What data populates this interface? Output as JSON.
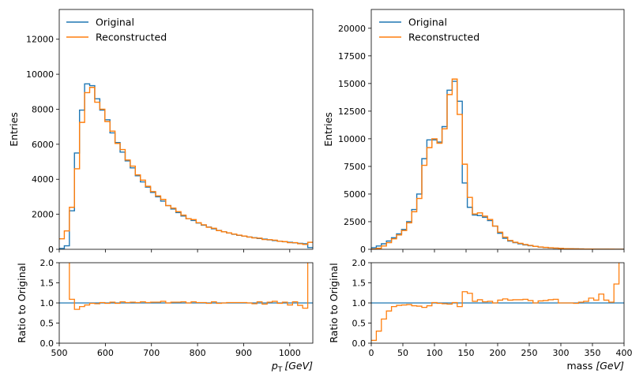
{
  "colors": {
    "original": "#1f77b4",
    "reconstructed": "#ff7f0e",
    "ratio_ref": "#1f77b4"
  },
  "chart_data": [
    {
      "name": "pt",
      "type": "histogram",
      "ylabel": "Entries",
      "ylabel_ratio": "Ratio to Original",
      "xlabel_sym": "p",
      "xlabel_sub": "T",
      "xlabel_unit": "[GeV]",
      "legend": {
        "position": "top-left",
        "entries": [
          "Original",
          "Reconstructed"
        ]
      },
      "xlim": [
        500,
        1050
      ],
      "ylim": [
        0,
        13700
      ],
      "ratio_ylim": [
        0,
        2.0
      ],
      "xticks": [
        500,
        600,
        700,
        800,
        900,
        1000
      ],
      "xtick_labels": [
        "500",
        "600",
        "700",
        "800",
        "900",
        "1000"
      ],
      "yticks": [
        0,
        2000,
        4000,
        6000,
        8000,
        10000,
        12000
      ],
      "ytick_labels": [
        "0",
        "2000",
        "4000",
        "6000",
        "8000",
        "10000",
        "12000"
      ],
      "ratio_yticks": [
        0,
        0.5,
        1.0,
        1.5,
        2.0
      ],
      "ratio_ytick_labels": [
        "0.0",
        "0.5",
        "1.0",
        "1.5",
        "2.0"
      ],
      "bin_edges": [
        500,
        511,
        522,
        533,
        544,
        555,
        566,
        577,
        588,
        599,
        610,
        621,
        632,
        643,
        654,
        665,
        676,
        687,
        698,
        709,
        720,
        731,
        742,
        753,
        764,
        775,
        786,
        797,
        808,
        819,
        830,
        841,
        852,
        863,
        874,
        885,
        896,
        907,
        918,
        929,
        940,
        951,
        962,
        973,
        984,
        995,
        1006,
        1017,
        1028,
        1039,
        1050
      ],
      "original": [
        50,
        200,
        2200,
        5500,
        7950,
        9450,
        9350,
        8600,
        7950,
        7400,
        6650,
        6100,
        5550,
        5050,
        4650,
        4200,
        3850,
        3550,
        3250,
        3000,
        2750,
        2500,
        2300,
        2100,
        1900,
        1750,
        1650,
        1500,
        1380,
        1270,
        1170,
        1080,
        1000,
        930,
        860,
        800,
        750,
        700,
        660,
        620,
        580,
        540,
        500,
        465,
        430,
        400,
        370,
        340,
        320,
        100
      ],
      "reconstructed": [
        600,
        1050,
        2400,
        4600,
        7250,
        8950,
        9250,
        8400,
        8000,
        7300,
        6750,
        6050,
        5700,
        5100,
        4750,
        4250,
        3950,
        3600,
        3300,
        3050,
        2850,
        2500,
        2350,
        2150,
        1950,
        1750,
        1700,
        1520,
        1400,
        1260,
        1200,
        1070,
        1000,
        940,
        870,
        810,
        760,
        700,
        650,
        640,
        560,
        550,
        520,
        460,
        440,
        380,
        380,
        320,
        280,
        400
      ],
      "ratio": [
        2.8,
        2.8,
        1.09,
        0.84,
        0.91,
        0.95,
        0.99,
        0.98,
        1.01,
        0.99,
        1.02,
        0.99,
        1.03,
        1.01,
        1.02,
        1.01,
        1.03,
        1.01,
        1.02,
        1.02,
        1.04,
        1.0,
        1.02,
        1.02,
        1.03,
        1.0,
        1.03,
        1.01,
        1.01,
        0.99,
        1.03,
        0.99,
        1.0,
        1.01,
        1.01,
        1.01,
        1.01,
        1.0,
        0.98,
        1.03,
        0.97,
        1.02,
        1.04,
        0.99,
        1.02,
        0.95,
        1.03,
        0.94,
        0.87,
        2.8
      ]
    },
    {
      "name": "mass",
      "type": "histogram",
      "ylabel": "Entries",
      "ylabel_ratio": "Ratio to Original",
      "xlabel_sym": "mass ",
      "xlabel_sub": "",
      "xlabel_unit": "[GeV]",
      "legend": {
        "position": "top-left",
        "entries": [
          "Original",
          "Reconstructed"
        ]
      },
      "xlim": [
        0,
        400
      ],
      "ylim": [
        0,
        21700
      ],
      "ratio_ylim": [
        0,
        2.0
      ],
      "xticks": [
        0,
        50,
        100,
        150,
        200,
        250,
        300,
        350,
        400
      ],
      "xtick_labels": [
        "0",
        "50",
        "100",
        "150",
        "200",
        "250",
        "300",
        "350",
        "400"
      ],
      "yticks": [
        0,
        2500,
        5000,
        7500,
        10000,
        12500,
        15000,
        17500,
        20000
      ],
      "ytick_labels": [
        "0",
        "2500",
        "5000",
        "7500",
        "10000",
        "12500",
        "15000",
        "17500",
        "20000"
      ],
      "ratio_yticks": [
        0,
        0.5,
        1.0,
        1.5,
        2.0
      ],
      "ratio_ytick_labels": [
        "0.0",
        "0.5",
        "1.0",
        "1.5",
        "2.0"
      ],
      "bin_edges": [
        0,
        8,
        16,
        24,
        32,
        40,
        48,
        56,
        64,
        72,
        80,
        88,
        96,
        104,
        112,
        120,
        128,
        136,
        144,
        152,
        160,
        168,
        176,
        184,
        192,
        200,
        208,
        216,
        224,
        232,
        240,
        248,
        256,
        264,
        272,
        280,
        288,
        296,
        304,
        312,
        320,
        328,
        336,
        344,
        352,
        360,
        368,
        376,
        384,
        392,
        400
      ],
      "original": [
        150,
        300,
        500,
        750,
        1050,
        1400,
        1800,
        2500,
        3600,
        5000,
        8200,
        9900,
        9900,
        9700,
        11100,
        14400,
        15200,
        13400,
        6000,
        3800,
        3100,
        3050,
        2900,
        2600,
        2100,
        1450,
        1000,
        750,
        600,
        500,
        400,
        330,
        260,
        200,
        160,
        130,
        100,
        80,
        60,
        50,
        40,
        30,
        25,
        20,
        15,
        12,
        10,
        8,
        6,
        5
      ],
      "reconstructed": [
        20,
        90,
        300,
        600,
        950,
        1300,
        1700,
        2400,
        3400,
        4600,
        7600,
        9200,
        10000,
        9600,
        10900,
        14000,
        15400,
        12200,
        7700,
        4700,
        3200,
        3300,
        3000,
        2700,
        2100,
        1550,
        1100,
        800,
        640,
        540,
        430,
        350,
        260,
        210,
        170,
        140,
        110,
        80,
        60,
        50,
        40,
        31,
        26,
        20,
        16,
        13,
        11,
        9,
        7,
        6
      ],
      "ratio": [
        0.07,
        0.3,
        0.6,
        0.8,
        0.91,
        0.94,
        0.95,
        0.96,
        0.93,
        0.92,
        0.89,
        0.93,
        1.01,
        0.99,
        0.98,
        0.97,
        1.01,
        0.91,
        1.28,
        1.24,
        1.04,
        1.08,
        1.03,
        1.04,
        1.0,
        1.07,
        1.1,
        1.07,
        1.08,
        1.08,
        1.09,
        1.06,
        1.0,
        1.05,
        1.06,
        1.08,
        1.09,
        1.0,
        1.0,
        1.0,
        0.99,
        1.02,
        1.04,
        1.12,
        1.07,
        1.22,
        1.07,
        1.02,
        1.47,
        2.8
      ]
    }
  ]
}
